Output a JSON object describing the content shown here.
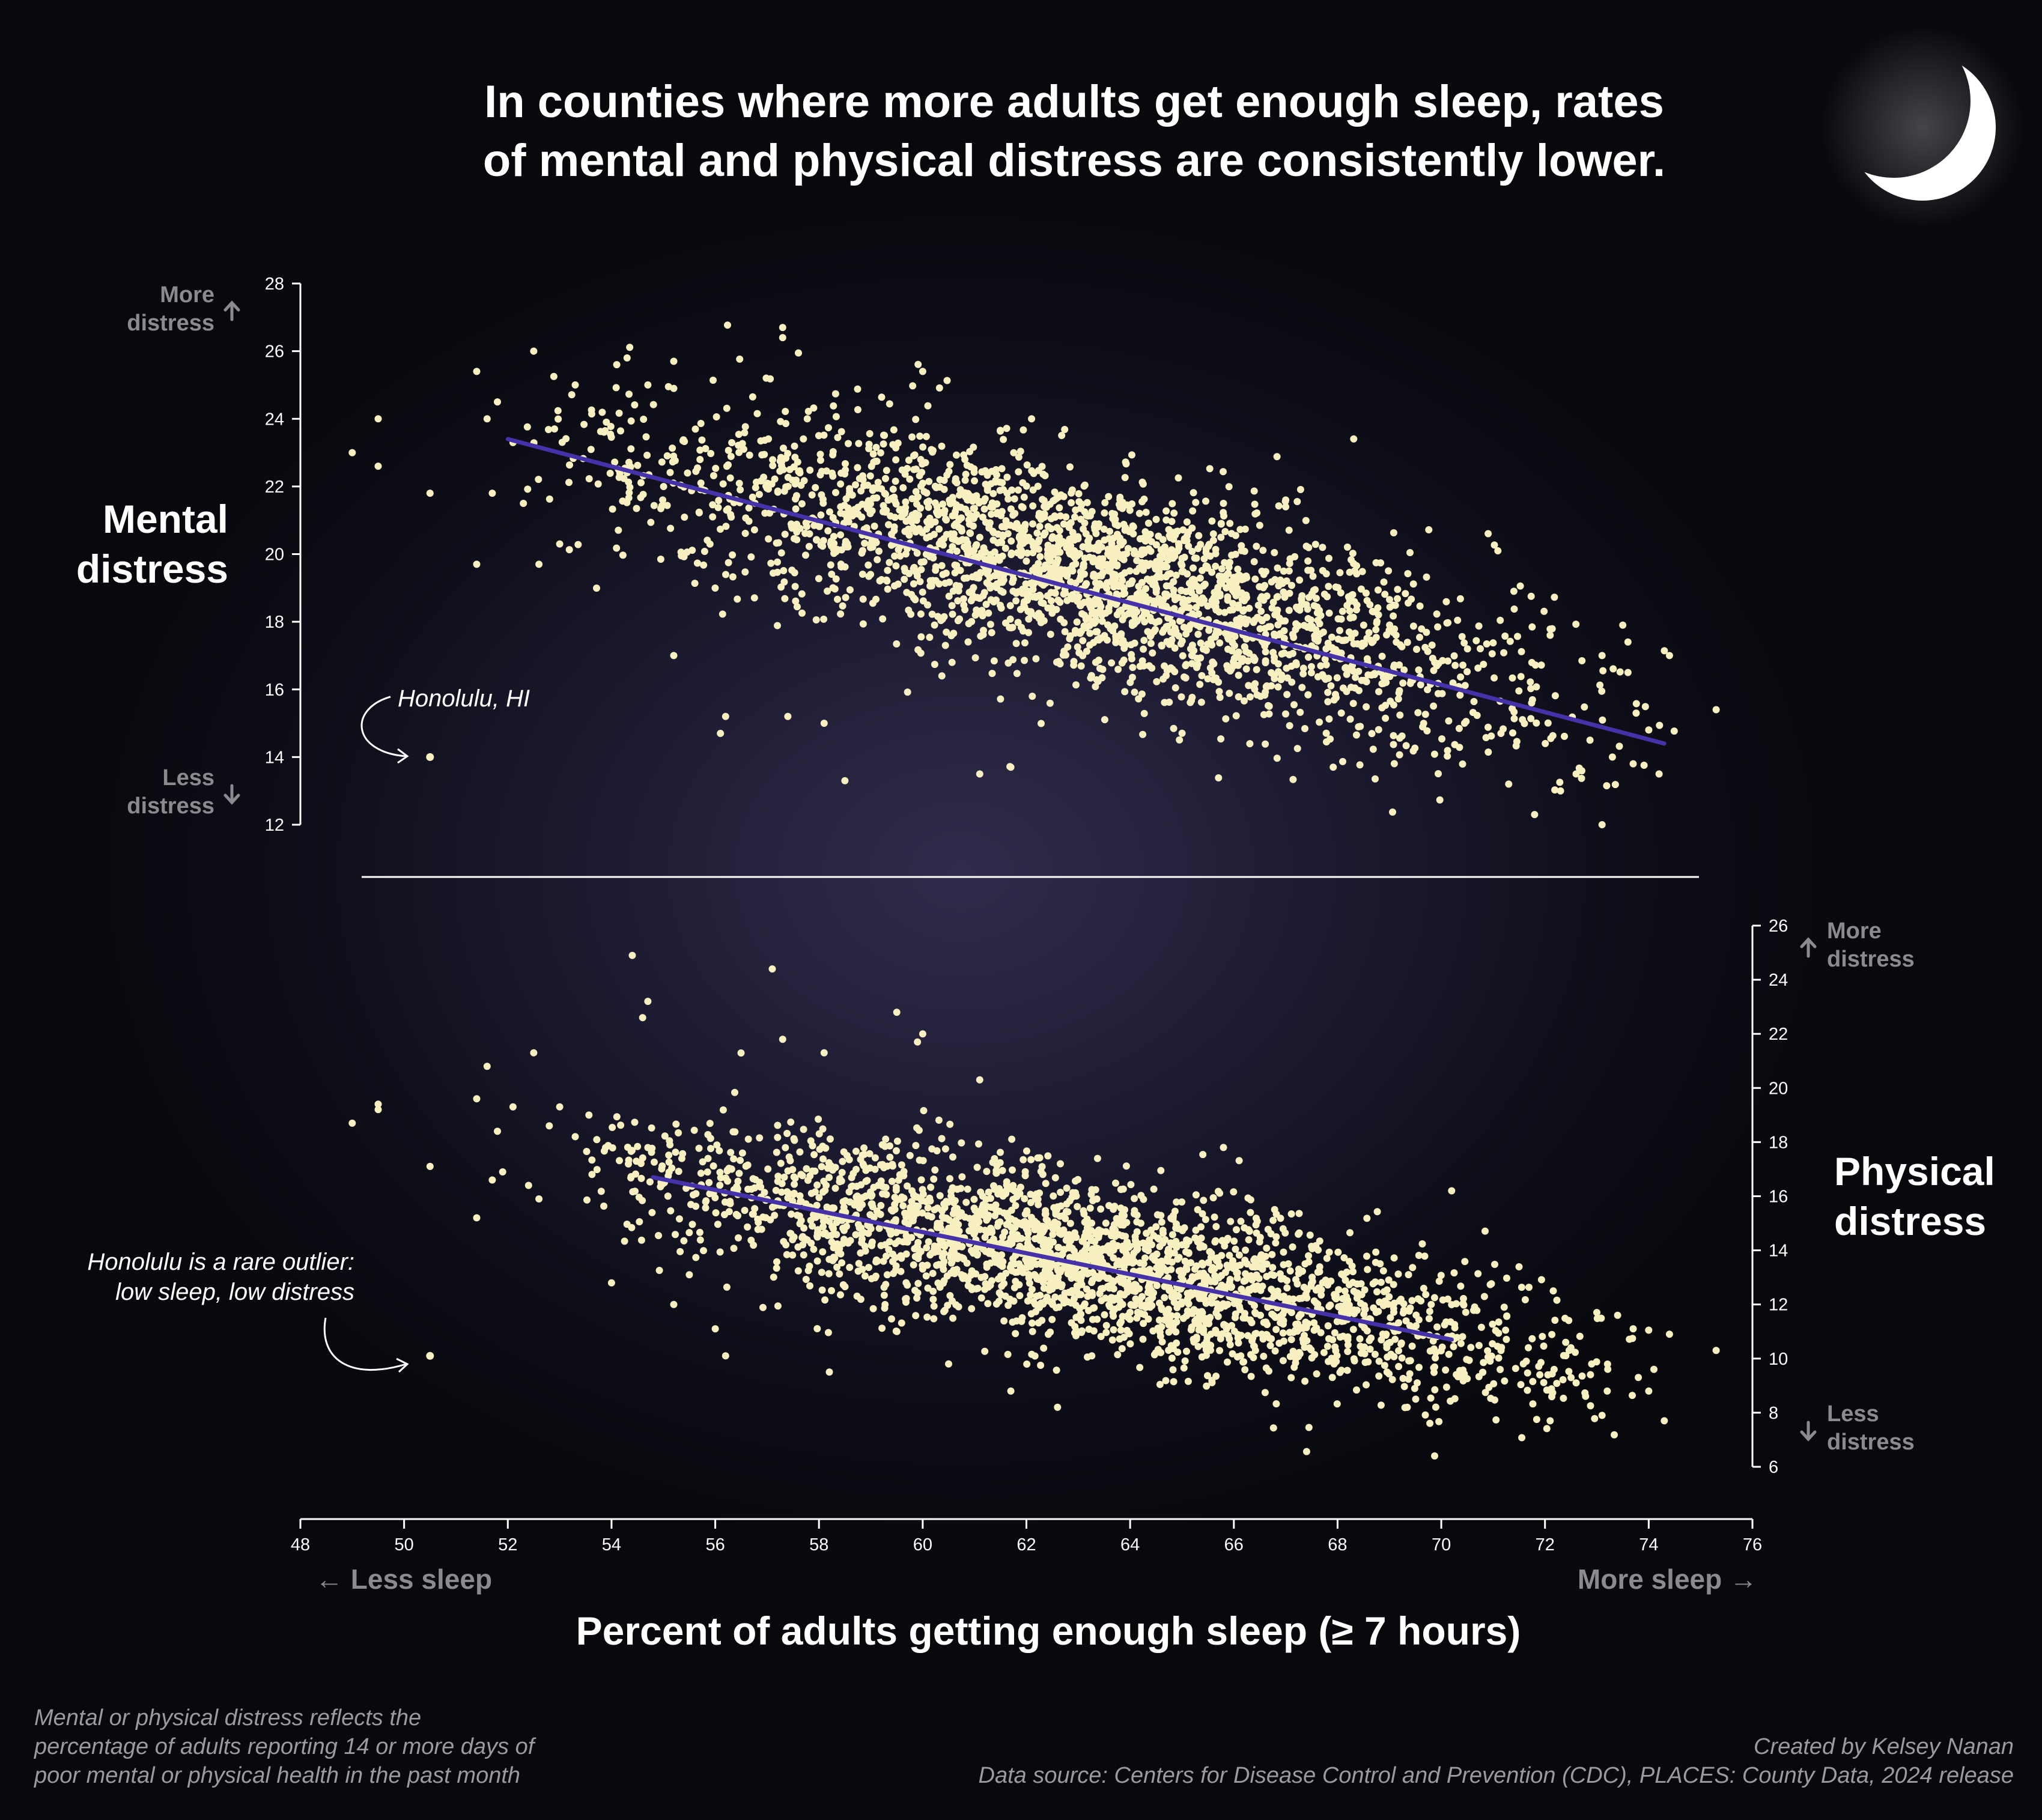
{
  "title_lines": [
    "In counties where more adults get enough sleep, rates",
    "of mental and physical distress are consistently lower."
  ],
  "colors": {
    "point": "#f8f0c0",
    "trend": "#4632a8",
    "axis": "#ffffff",
    "muted": "#8a8a8f"
  },
  "chart_data": [
    {
      "type": "scatter",
      "panel": "top",
      "label": [
        "Mental",
        "distress"
      ],
      "x_range": [
        48,
        76
      ],
      "y_range": [
        12,
        28
      ],
      "y_ticks": [
        12,
        14,
        16,
        18,
        20,
        22,
        24,
        26,
        28
      ],
      "trend": {
        "x1": 52,
        "y1": 23.4,
        "x2": 74.3,
        "y2": 14.4
      },
      "cloud": {
        "n": 2600,
        "x_mean": 63.2,
        "x_sd": 4.3,
        "y_intercept": 19.45,
        "slope": -0.4,
        "y_sd": 1.55,
        "x_min": 52.3,
        "x_max": 74.5
      },
      "outliers": [
        {
          "x": 49.0,
          "y": 23.0
        },
        {
          "x": 49.5,
          "y": 24.0
        },
        {
          "x": 49.5,
          "y": 22.6
        },
        {
          "x": 50.5,
          "y": 21.8
        },
        {
          "x": 51.4,
          "y": 25.4
        },
        {
          "x": 52.5,
          "y": 26.0
        },
        {
          "x": 51.4,
          "y": 19.7
        },
        {
          "x": 52.6,
          "y": 19.7
        },
        {
          "x": 51.7,
          "y": 21.8
        },
        {
          "x": 51.8,
          "y": 24.5
        },
        {
          "x": 51.6,
          "y": 24.0
        },
        {
          "x": 52.1,
          "y": 23.3
        },
        {
          "x": 52.3,
          "y": 21.5
        },
        {
          "x": 52.9,
          "y": 23.7
        },
        {
          "x": 53.3,
          "y": 25.0
        },
        {
          "x": 53.0,
          "y": 20.3
        },
        {
          "x": 57.3,
          "y": 26.7
        },
        {
          "x": 57.3,
          "y": 26.4
        },
        {
          "x": 60.0,
          "y": 25.4
        },
        {
          "x": 55.2,
          "y": 25.7
        },
        {
          "x": 54.3,
          "y": 25.8
        },
        {
          "x": 53.9,
          "y": 23.9
        },
        {
          "x": 54.1,
          "y": 25.6
        },
        {
          "x": 55.2,
          "y": 24.9
        },
        {
          "x": 54.7,
          "y": 25.0
        },
        {
          "x": 58.5,
          "y": 13.3
        },
        {
          "x": 56.2,
          "y": 15.2
        },
        {
          "x": 57.4,
          "y": 15.2
        },
        {
          "x": 56.1,
          "y": 14.7
        },
        {
          "x": 58.1,
          "y": 15.0
        },
        {
          "x": 61.1,
          "y": 13.5
        },
        {
          "x": 61.7,
          "y": 13.7
        },
        {
          "x": 62.1,
          "y": 24.0
        },
        {
          "x": 65.8,
          "y": 21.5
        },
        {
          "x": 67.0,
          "y": 21.6
        },
        {
          "x": 67.0,
          "y": 21.4
        },
        {
          "x": 71.4,
          "y": 18.9
        },
        {
          "x": 72.1,
          "y": 17.6
        },
        {
          "x": 73.5,
          "y": 17.9
        },
        {
          "x": 74.4,
          "y": 17.0
        },
        {
          "x": 73.1,
          "y": 17.0
        },
        {
          "x": 73.6,
          "y": 17.4
        },
        {
          "x": 73.6,
          "y": 16.5
        },
        {
          "x": 75.3,
          "y": 15.4
        },
        {
          "x": 73.1,
          "y": 12.0
        },
        {
          "x": 71.8,
          "y": 12.3
        },
        {
          "x": 73.3,
          "y": 14.0
        },
        {
          "x": 74.2,
          "y": 13.5
        },
        {
          "x": 72.6,
          "y": 13.5
        },
        {
          "x": 73.7,
          "y": 13.8
        },
        {
          "x": 74.0,
          "y": 14.8
        },
        {
          "x": 72.3,
          "y": 13.0
        },
        {
          "x": 71.3,
          "y": 13.2
        },
        {
          "x": 55.2,
          "y": 17.0
        }
      ],
      "highlight": {
        "label": "Honolulu, HI",
        "x": 50.5,
        "y": 14.0
      },
      "more_label": [
        "More",
        "distress"
      ],
      "less_label": [
        "Less",
        "distress"
      ]
    },
    {
      "type": "scatter",
      "panel": "bottom",
      "label": [
        "Physical",
        "distress"
      ],
      "x_range": [
        48,
        76
      ],
      "y_range": [
        6,
        26
      ],
      "y_ticks": [
        6,
        8,
        10,
        12,
        14,
        16,
        18,
        20,
        22,
        24,
        26
      ],
      "trend": {
        "x1": 54.8,
        "y1": 16.7,
        "x2": 70.2,
        "y2": 10.7
      },
      "cloud": {
        "n": 2600,
        "x_mean": 63.0,
        "x_sd": 4.3,
        "y_intercept": 13.6,
        "slope": -0.4,
        "y_sd": 1.5,
        "x_min": 53.5,
        "x_max": 74.0
      },
      "outliers": [
        {
          "x": 49.0,
          "y": 18.7
        },
        {
          "x": 49.5,
          "y": 19.4
        },
        {
          "x": 49.5,
          "y": 19.2
        },
        {
          "x": 50.5,
          "y": 17.1
        },
        {
          "x": 51.4,
          "y": 19.6
        },
        {
          "x": 51.6,
          "y": 20.8
        },
        {
          "x": 52.5,
          "y": 21.3
        },
        {
          "x": 51.4,
          "y": 15.2
        },
        {
          "x": 51.7,
          "y": 16.6
        },
        {
          "x": 51.9,
          "y": 16.9
        },
        {
          "x": 52.1,
          "y": 19.3
        },
        {
          "x": 52.4,
          "y": 16.4
        },
        {
          "x": 52.6,
          "y": 15.9
        },
        {
          "x": 52.8,
          "y": 18.6
        },
        {
          "x": 53.0,
          "y": 19.3
        },
        {
          "x": 53.3,
          "y": 18.2
        },
        {
          "x": 51.8,
          "y": 18.4
        },
        {
          "x": 54.4,
          "y": 24.9
        },
        {
          "x": 54.7,
          "y": 23.2
        },
        {
          "x": 54.6,
          "y": 22.6
        },
        {
          "x": 57.1,
          "y": 24.4
        },
        {
          "x": 59.5,
          "y": 22.8
        },
        {
          "x": 59.9,
          "y": 21.7
        },
        {
          "x": 60.0,
          "y": 22.0
        },
        {
          "x": 57.3,
          "y": 21.8
        },
        {
          "x": 58.1,
          "y": 21.3
        },
        {
          "x": 54.0,
          "y": 12.8
        },
        {
          "x": 55.2,
          "y": 12.0
        },
        {
          "x": 56.0,
          "y": 11.1
        },
        {
          "x": 56.2,
          "y": 10.1
        },
        {
          "x": 58.2,
          "y": 9.5
        },
        {
          "x": 61.7,
          "y": 8.8
        },
        {
          "x": 62.6,
          "y": 8.2
        },
        {
          "x": 61.1,
          "y": 20.3
        },
        {
          "x": 65.8,
          "y": 17.8
        },
        {
          "x": 70.2,
          "y": 16.2
        },
        {
          "x": 72.1,
          "y": 7.7
        },
        {
          "x": 74.3,
          "y": 7.7
        },
        {
          "x": 73.1,
          "y": 7.9
        },
        {
          "x": 74.0,
          "y": 8.8
        },
        {
          "x": 72.6,
          "y": 9.1
        },
        {
          "x": 73.4,
          "y": 11.6
        },
        {
          "x": 73.7,
          "y": 11.1
        },
        {
          "x": 74.4,
          "y": 10.9
        },
        {
          "x": 75.3,
          "y": 10.3
        },
        {
          "x": 72.4,
          "y": 10.6
        },
        {
          "x": 72.5,
          "y": 10.4
        },
        {
          "x": 72.9,
          "y": 9.8
        },
        {
          "x": 73.2,
          "y": 8.8
        },
        {
          "x": 74.1,
          "y": 9.6
        },
        {
          "x": 73.8,
          "y": 9.3
        },
        {
          "x": 71.9,
          "y": 9.4
        }
      ],
      "highlight": {
        "label": "Honolulu",
        "x": 50.5,
        "y": 10.1
      },
      "more_label": [
        "More",
        "distress"
      ],
      "less_label": [
        "Less",
        "distress"
      ]
    }
  ],
  "x_axis": {
    "ticks": [
      48,
      50,
      52,
      54,
      56,
      58,
      60,
      62,
      64,
      66,
      68,
      70,
      72,
      74,
      76
    ],
    "title": "Percent of adults getting enough sleep (≥ 7 hours)",
    "less_label": "← Less sleep",
    "more_label": "More sleep →"
  },
  "annotations": {
    "honolulu_top": "Honolulu, HI",
    "outlier_lines": [
      "Honolulu is a rare outlier:",
      "low sleep, low distress"
    ]
  },
  "footer": {
    "note_lines": [
      "Mental or physical distress reflects the",
      "percentage of adults reporting 14 or more days of",
      "poor mental or physical health in the past month"
    ],
    "credit": "Created by Kelsey Nanan",
    "source": "Data source: Centers for Disease Control and Prevention (CDC), PLACES: County Data, 2024 release"
  }
}
